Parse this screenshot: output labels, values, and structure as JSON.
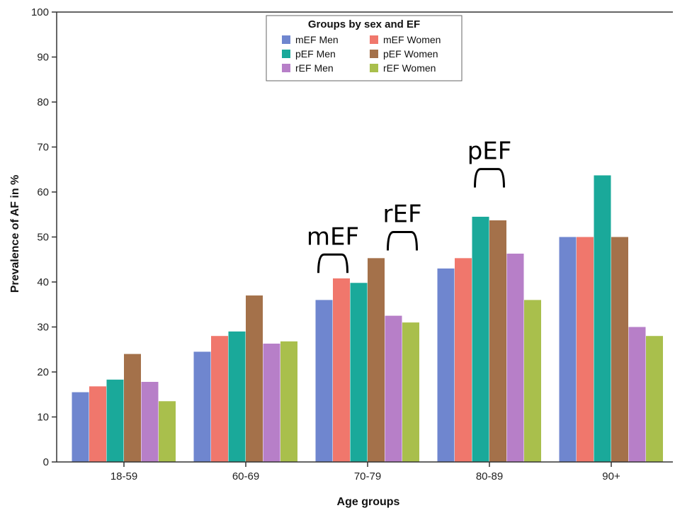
{
  "chart_data": {
    "type": "bar",
    "title": "",
    "xlabel": "Age groups",
    "ylabel": "Prevalence of AF in %",
    "ylim": [
      0,
      100
    ],
    "yticks": [
      0,
      10,
      20,
      30,
      40,
      50,
      60,
      70,
      80,
      90,
      100
    ],
    "grid": false,
    "categories": [
      "18-59",
      "60-69",
      "70-79",
      "80-89",
      "90+"
    ],
    "legend": {
      "title": "Groups by sex and EF",
      "placement": "top-center",
      "columns": 2
    },
    "series": [
      {
        "name": "mEF Men",
        "color": "#6f86cf",
        "values": [
          15.5,
          24.5,
          36.0,
          43.0,
          50.0
        ]
      },
      {
        "name": "mEF Women",
        "color": "#f0776c",
        "values": [
          16.8,
          28.0,
          40.8,
          45.3,
          50.0
        ]
      },
      {
        "name": "pEF Men",
        "color": "#1aa99a",
        "values": [
          18.3,
          29.0,
          39.8,
          54.5,
          63.7
        ]
      },
      {
        "name": "pEF Women",
        "color": "#a4714a",
        "values": [
          24.0,
          37.0,
          45.3,
          53.7,
          50.0
        ]
      },
      {
        "name": "rEF Men",
        "color": "#b77fc8",
        "values": [
          17.8,
          26.3,
          32.5,
          46.3,
          30.0
        ]
      },
      {
        "name": "rEF Women",
        "color": "#a9bf4c",
        "values": [
          13.5,
          26.8,
          31.0,
          36.0,
          28.0
        ]
      }
    ],
    "annotations": [
      {
        "text": "mEF",
        "category": "70-79",
        "series_from": 0,
        "series_to": 1,
        "value": 42
      },
      {
        "text": "rEF",
        "category": "70-79",
        "series_from": 4,
        "series_to": 5,
        "value": 47
      },
      {
        "text": "pEF",
        "category": "80-89",
        "series_from": 2,
        "series_to": 3,
        "value": 61
      }
    ]
  }
}
